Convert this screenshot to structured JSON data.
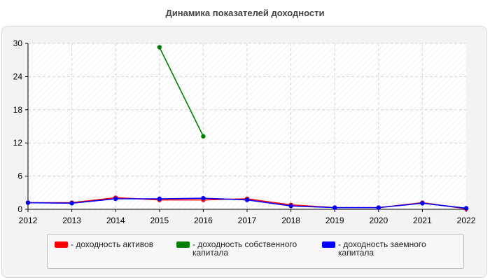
{
  "chart_data": {
    "type": "line",
    "title": "Динамика показателей доходности",
    "xlabel": "",
    "ylabel": "",
    "categories": [
      "2012",
      "2013",
      "2014",
      "2015",
      "2016",
      "2017",
      "2018",
      "2019",
      "2020",
      "2021",
      "2022"
    ],
    "ylim": [
      0,
      30
    ],
    "yticks": [
      "0",
      "6",
      "12",
      "18",
      "24",
      "30"
    ],
    "grid": true,
    "legend_position": "bottom",
    "series": [
      {
        "name": "- доходность активов",
        "color": "#ff0000",
        "values": [
          1.2,
          1.2,
          2.1,
          1.7,
          1.7,
          1.9,
          0.8,
          0.3,
          0.3,
          1.2,
          0.1
        ]
      },
      {
        "name": "- доходность собственного капитала",
        "color": "#007f00",
        "values": [
          null,
          null,
          null,
          29.3,
          13.2,
          null,
          null,
          null,
          null,
          null,
          null
        ]
      },
      {
        "name": "- доходность заемного капитала",
        "color": "#0000ff",
        "values": [
          1.2,
          1.1,
          1.9,
          1.9,
          2.0,
          1.7,
          0.6,
          0.3,
          0.3,
          1.1,
          0.2
        ]
      }
    ]
  }
}
